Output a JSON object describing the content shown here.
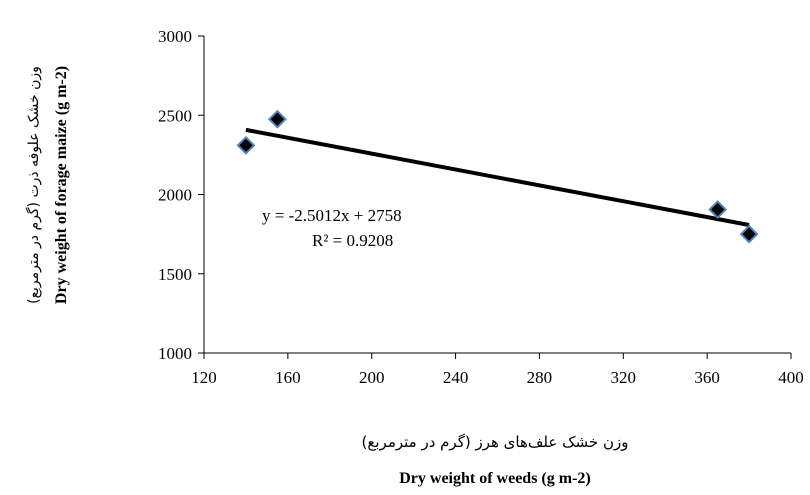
{
  "chart_data": {
    "type": "scatter",
    "title": "",
    "xlabel_fa": "وزن خشک علف‌های هرز (گرم در مترمربع)",
    "xlabel": "Dry weight of weeds (g m-2)",
    "ylabel_fa": "وزن خشک علوفه ذرت (گرم در مترمربع)",
    "ylabel": "Dry weight of  forage maize (g m-2)",
    "xlim": [
      120,
      400
    ],
    "ylim": [
      1000,
      3000
    ],
    "x_ticks": [
      120,
      160,
      200,
      240,
      280,
      320,
      360,
      400
    ],
    "y_ticks": [
      1000,
      1500,
      2000,
      2500,
      3000
    ],
    "x_tick_labels": [
      "120",
      "160",
      "200",
      "240",
      "280",
      "320",
      "360",
      "400"
    ],
    "y_tick_labels": [
      "1000",
      "1500",
      "2000",
      "2500",
      "3000"
    ],
    "series": [
      {
        "x": [
          140,
          155,
          365,
          380
        ],
        "y": [
          2310,
          2475,
          1905,
          1750
        ],
        "marker": "diamond",
        "color": "#000000",
        "edge_color": "#4f81bd"
      }
    ],
    "trendline": {
      "slope": -2.5012,
      "intercept": 2758,
      "x_range": [
        140,
        380
      ],
      "color": "#000000"
    },
    "equation": "y = -2.5012x + 2758",
    "r_squared": "R² = 0.9208",
    "grid": false,
    "legend": "none"
  }
}
